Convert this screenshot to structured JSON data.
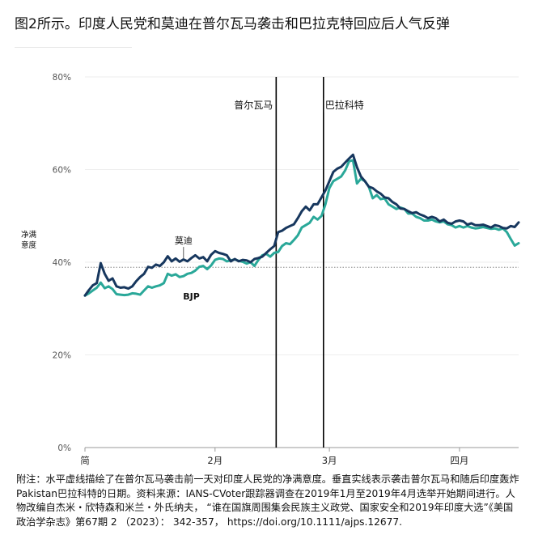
{
  "title": "图2所示。印度人民党和莫迪在普尔瓦马袭击和巴拉克特回应后人气反弹",
  "colors": {
    "modi": "#17375e",
    "bjp": "#2aa899",
    "event": "#000000",
    "ref": "#888888",
    "tick": "#555555"
  },
  "chart_data": {
    "type": "line",
    "ylabel": "净满\n意度",
    "ylim": [
      0,
      80
    ],
    "yticks": [
      {
        "value": 0,
        "label": "0%"
      },
      {
        "value": 20,
        "label": "20%"
      },
      {
        "value": 40,
        "label": "40%"
      },
      {
        "value": 60,
        "label": "60%"
      },
      {
        "value": 80,
        "label": "80%"
      }
    ],
    "xlim": [
      0,
      110
    ],
    "xticks": [
      {
        "x": 0,
        "label": "简"
      },
      {
        "x": 33,
        "label": "2月"
      },
      {
        "x": 62,
        "label": "3月"
      },
      {
        "x": 95,
        "label": "四月"
      }
    ],
    "reference_line": {
      "y": 38.9,
      "style": "dotted"
    },
    "events": [
      {
        "x": 48.5,
        "label": "普尔瓦马"
      },
      {
        "x": 60.5,
        "label": "巴拉科特"
      }
    ],
    "series": [
      {
        "name": "莫迪",
        "label_at": [
          25,
          44
        ],
        "x": [
          0,
          1,
          2,
          3,
          4,
          5,
          6,
          7,
          8,
          9,
          10,
          11,
          12,
          13,
          14,
          15,
          16,
          17,
          18,
          19,
          20,
          21,
          22,
          23,
          24,
          25,
          26,
          27,
          28,
          29,
          30,
          31,
          32,
          33,
          34,
          35,
          36,
          37,
          38,
          39,
          40,
          41,
          42,
          43,
          44,
          45,
          46,
          47,
          48,
          49,
          50,
          51,
          52,
          53,
          54,
          55,
          56,
          57,
          58,
          59,
          60,
          61,
          62,
          63,
          64,
          65,
          66,
          67,
          68,
          69,
          70,
          71,
          72,
          73,
          74,
          75,
          76,
          77,
          78,
          79,
          80,
          81,
          82,
          83,
          84,
          85,
          86,
          87,
          88,
          89,
          90,
          91,
          92,
          93,
          94,
          95,
          96,
          97,
          98,
          99,
          100,
          101,
          102,
          103,
          104,
          105,
          106,
          107,
          108,
          109,
          110
        ],
        "values": [
          32.8,
          34.0,
          35.0,
          35.5,
          39.8,
          37.5,
          36.0,
          36.5,
          34.8,
          34.5,
          34.6,
          34.3,
          34.8,
          35.9,
          36.8,
          37.5,
          39.0,
          38.8,
          39.5,
          39.2,
          40.0,
          41.3,
          40.2,
          40.8,
          40.1,
          40.6,
          40.2,
          40.9,
          41.5,
          40.8,
          41.1,
          40.2,
          41.6,
          42.4,
          42.0,
          41.8,
          41.5,
          40.2,
          40.7,
          40.2,
          40.5,
          40.4,
          40.0,
          40.7,
          40.9,
          41.2,
          42.0,
          42.8,
          43.5,
          46.5,
          46.8,
          47.4,
          47.8,
          48.2,
          49.5,
          51.0,
          52.0,
          51.2,
          52.5,
          52.5,
          54.0,
          55.5,
          57.5,
          59.5,
          60.2,
          60.6,
          61.5,
          62.4,
          63.2,
          60.5,
          58.5,
          57.5,
          56.3,
          56.0,
          55.3,
          54.8,
          54.0,
          53.8,
          53.0,
          52.5,
          51.6,
          51.5,
          51.0,
          50.6,
          50.8,
          50.3,
          50.0,
          49.5,
          49.8,
          49.5,
          48.8,
          49.2,
          48.5,
          48.3,
          48.8,
          49.0,
          48.8,
          48.1,
          48.4,
          48.0,
          48.0,
          48.1,
          47.8,
          47.5,
          48.0,
          47.8,
          47.4,
          47.3,
          47.8,
          47.6,
          48.6
        ]
      },
      {
        "name": "BJP",
        "label_at": [
          27,
          32
        ],
        "x": [
          0,
          1,
          2,
          3,
          4,
          5,
          6,
          7,
          8,
          9,
          10,
          11,
          12,
          13,
          14,
          15,
          16,
          17,
          18,
          19,
          20,
          21,
          22,
          23,
          24,
          25,
          26,
          27,
          28,
          29,
          30,
          31,
          32,
          33,
          34,
          35,
          36,
          37,
          38,
          39,
          40,
          41,
          42,
          43,
          44,
          45,
          46,
          47,
          48,
          49,
          50,
          51,
          52,
          53,
          54,
          55,
          56,
          57,
          58,
          59,
          60,
          61,
          62,
          63,
          64,
          65,
          66,
          67,
          68,
          69,
          70,
          71,
          72,
          73,
          74,
          75,
          76,
          77,
          78,
          79,
          80,
          81,
          82,
          83,
          84,
          85,
          86,
          87,
          88,
          89,
          90,
          91,
          92,
          93,
          94,
          95,
          96,
          97,
          98,
          99,
          100,
          101,
          102,
          103,
          104,
          105,
          106,
          107,
          108,
          109,
          110
        ],
        "values": [
          32.8,
          33.3,
          33.9,
          34.5,
          35.6,
          34.4,
          34.8,
          34.2,
          33.1,
          33.0,
          32.9,
          33.0,
          33.3,
          33.2,
          33.0,
          33.9,
          34.8,
          34.5,
          34.8,
          35.0,
          35.5,
          37.5,
          37.1,
          37.4,
          36.8,
          37.0,
          37.5,
          37.7,
          38.2,
          39.0,
          39.2,
          38.5,
          39.3,
          40.5,
          40.8,
          40.7,
          40.2,
          40.4,
          40.6,
          40.3,
          40.1,
          39.7,
          40.0,
          39.2,
          40.5,
          41.5,
          41.8,
          41.2,
          42.0,
          42.2,
          43.5,
          44.1,
          43.9,
          44.8,
          45.8,
          47.5,
          48.0,
          48.5,
          49.8,
          49.2,
          50.0,
          52.5,
          56.0,
          57.5,
          58.0,
          58.5,
          59.8,
          61.8,
          62.0,
          57.0,
          58.0,
          57.5,
          56.3,
          53.8,
          54.5,
          53.6,
          53.8,
          52.5,
          52.0,
          51.5,
          51.8,
          51.5,
          50.5,
          50.5,
          49.8,
          49.5,
          49.0,
          49.0,
          49.2,
          48.8,
          48.6,
          48.8,
          48.2,
          48.0,
          47.5,
          47.8,
          47.5,
          47.8,
          47.5,
          47.3,
          47.4,
          47.6,
          47.4,
          47.2,
          47.3,
          47.0,
          47.3,
          46.5,
          45.0,
          43.6,
          44.1
        ]
      }
    ]
  },
  "footnote": "附注：水平虚线描绘了在普尔瓦马袭击前一天对印度人民党的净满意度。垂直实线表示袭击普尔瓦马和随后印度轰炸Pakistan巴拉科特的日期。资料来源：IANS-CVoter跟踪器调查在2019年1月至2019年4月选举开始期间进行。人物改编自杰米・欣特森和米兰・外氏纳夫， “谁在国旗周围集会民族主义政党、国家安全和2019年印度大选”《美国政治学杂志》第67期 2 （2023）： 342-357， https://doi.org/10.1111/ajps.12677."
}
